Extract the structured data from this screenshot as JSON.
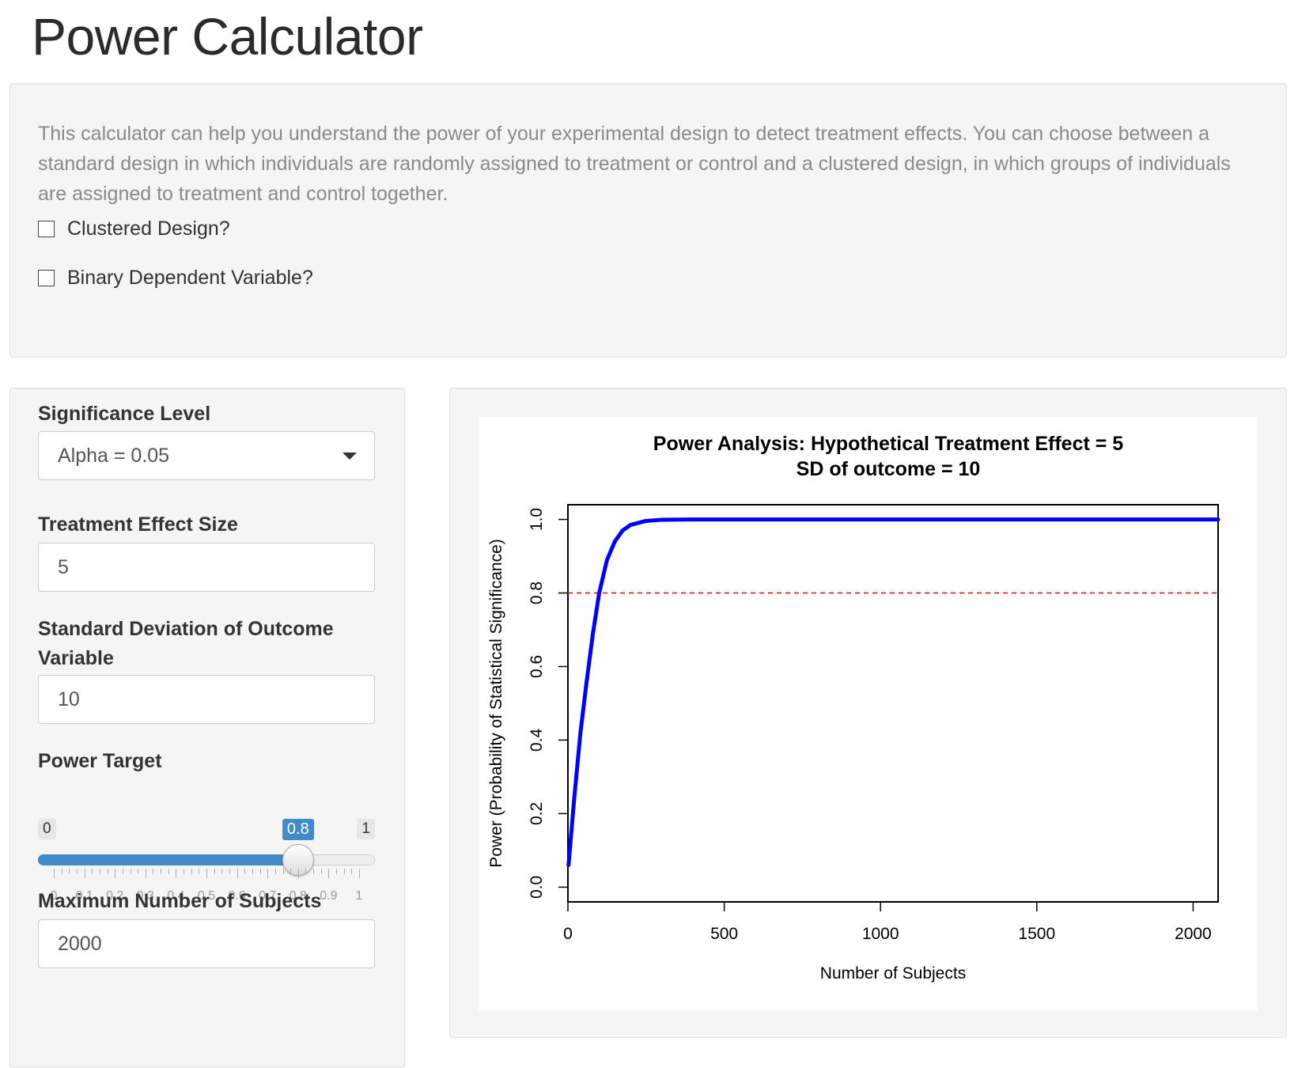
{
  "header": {
    "title": "Power Calculator"
  },
  "intro": {
    "text": "This calculator can help you understand the power of your experimental design to detect treatment effects. You can choose between a standard design in which individuals are randomly assigned to treatment or control and a clustered design, in which groups of individuals are assigned to treatment and control together."
  },
  "options": {
    "clustered_label": "Clustered Design?",
    "clustered_checked": false,
    "binary_label": "Binary Dependent Variable?",
    "binary_checked": false
  },
  "inputs": {
    "significance_label": "Significance Level",
    "significance_value": "Alpha = 0.05",
    "effect_label": "Treatment Effect Size",
    "effect_value": "5",
    "sd_label": "Standard Deviation of Outcome Variable",
    "sd_value": "10",
    "power_label": "Power Target",
    "power_min": "0",
    "power_max": "1",
    "power_value": "0.8",
    "power_value_num": 0.8,
    "power_tick_labels": [
      "0",
      "0.1",
      "0.2",
      "0.3",
      "0.4",
      "0.5",
      "0.6",
      "0.7",
      "0.8",
      "0.9",
      "1"
    ],
    "max_subjects_label": "Maximum Number of Subjects",
    "max_subjects_value": "2000"
  },
  "chart_data": {
    "type": "line",
    "title": "Power Analysis: Hypothetical Treatment Effect = 5",
    "subtitle": "SD of outcome = 10",
    "xlabel": "Number of Subjects",
    "ylabel": "Power (Probability of Statistical Significance)",
    "xlim": [
      0,
      2080
    ],
    "ylim": [
      -0.04,
      1.04
    ],
    "x_ticks": [
      0,
      500,
      1000,
      1500,
      2000
    ],
    "x_tick_labels": [
      "0",
      "500",
      "1000",
      "1500",
      "2000"
    ],
    "y_ticks": [
      0.0,
      0.2,
      0.4,
      0.6,
      0.8,
      1.0
    ],
    "y_tick_labels": [
      "0.0",
      "0.2",
      "0.4",
      "0.6",
      "0.8",
      "1.0"
    ],
    "series": [
      {
        "name": "power",
        "color": "#0000ff",
        "x": [
          2,
          20,
          40,
          60,
          80,
          100,
          125,
          150,
          175,
          200,
          250,
          300,
          400,
          500,
          1000,
          1500,
          2000,
          2080
        ],
        "values": [
          0.06,
          0.24,
          0.42,
          0.56,
          0.69,
          0.8,
          0.89,
          0.94,
          0.97,
          0.985,
          0.996,
          0.999,
          1.0,
          1.0,
          1.0,
          1.0,
          1.0,
          1.0
        ]
      }
    ],
    "reference_line": {
      "y": 0.8,
      "color": "#ff0000",
      "style": "dashed"
    }
  }
}
